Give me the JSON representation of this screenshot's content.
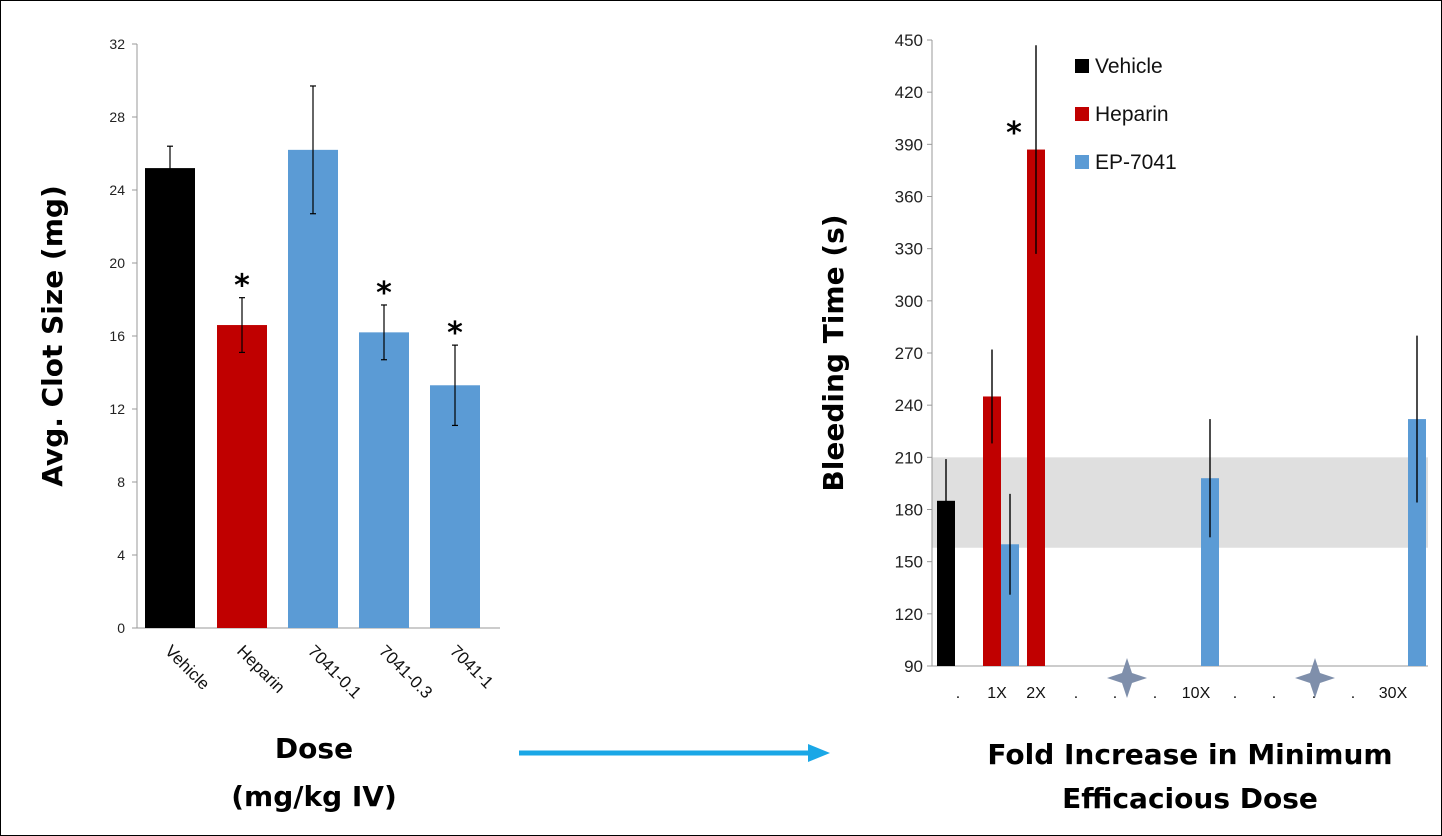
{
  "colors": {
    "vehicle": "#000000",
    "heparin": "#c00000",
    "ep7041": "#5b9bd5",
    "band": "#d9d9d9",
    "arrow": "#1aa7e6",
    "star_marker": "#7f8fab"
  },
  "chart_data": [
    {
      "type": "bar",
      "categories": [
        "Vehicle",
        "Heparin",
        "7041-0.1",
        "7041-0.3",
        "7041-1"
      ],
      "values": [
        25.2,
        16.6,
        26.2,
        16.2,
        13.3
      ],
      "errors": [
        1.2,
        1.5,
        3.5,
        1.5,
        2.2
      ],
      "significant": [
        false,
        true,
        false,
        true,
        true
      ],
      "bar_colors": [
        "#000000",
        "#c00000",
        "#5b9bd5",
        "#5b9bd5",
        "#5b9bd5"
      ],
      "ylabel": "Avg. Clot Size (mg)",
      "xlabel_lines": [
        "Dose",
        "(mg/kg IV)"
      ],
      "ylim": [
        0,
        32
      ],
      "yticks": [
        0,
        4,
        8,
        12,
        16,
        20,
        24,
        28,
        32
      ],
      "significance_marker": "*"
    },
    {
      "type": "bar",
      "tick_labels": [
        ".",
        "1X",
        "2X",
        ".",
        ".",
        ".",
        "10X",
        ".",
        ".",
        ".",
        ".",
        "30X"
      ],
      "series": [
        {
          "name": "Vehicle",
          "color": "#000000",
          "points": [
            {
              "x": ".",
              "value": 185,
              "error": 24
            }
          ]
        },
        {
          "name": "Heparin",
          "color": "#c00000",
          "points": [
            {
              "x": "1X",
              "value": 245,
              "error": 27
            },
            {
              "x": "2X",
              "value": 387,
              "error": 60,
              "significant": true
            }
          ]
        },
        {
          "name": "EP-7041",
          "color": "#5b9bd5",
          "points": [
            {
              "x": "1X",
              "value": 160,
              "error": 29
            },
            {
              "x": "10X",
              "value": 198,
              "error": 34
            },
            {
              "x": "30X",
              "value": 232,
              "error": 48
            }
          ]
        }
      ],
      "reference_band": [
        158,
        210
      ],
      "ylabel": "Bleeding Time (s)",
      "xlabel_lines": [
        "Fold Increase in Minimum",
        "Efficacious Dose"
      ],
      "ylim": [
        90,
        450
      ],
      "yticks": [
        90,
        120,
        150,
        180,
        210,
        240,
        270,
        300,
        330,
        360,
        390,
        420,
        450
      ],
      "legend_position": "top-right",
      "significance_marker": "*"
    }
  ]
}
